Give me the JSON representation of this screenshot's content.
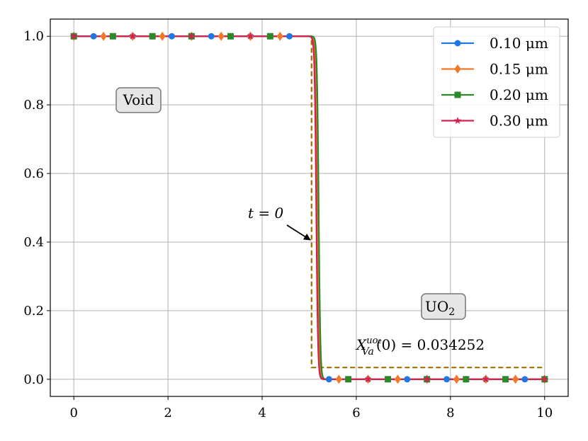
{
  "chart_data": {
    "type": "line",
    "title": "",
    "xlabel": "",
    "ylabel": "",
    "xlim": [
      -0.5,
      10.5
    ],
    "ylim": [
      -0.05,
      1.05
    ],
    "xticks": [
      0,
      2,
      4,
      6,
      8,
      10
    ],
    "yticks": [
      0.0,
      0.2,
      0.4,
      0.6,
      0.8,
      1.0
    ],
    "xtick_labels": [
      "0",
      "2",
      "4",
      "6",
      "8",
      "10"
    ],
    "ytick_labels": [
      "0.0",
      "0.2",
      "0.4",
      "0.6",
      "0.8",
      "1.0"
    ],
    "grid": true,
    "legend_position": "top-right",
    "series": [
      {
        "name": "0.10 μm",
        "color": "#1f77e4",
        "marker": "circle",
        "front_x": 5.17,
        "markers_x": [
          0,
          0.42,
          0.83,
          1.25,
          1.67,
          2.08,
          2.5,
          2.92,
          3.33,
          3.75,
          4.17,
          4.58,
          5.42,
          5.83,
          6.25,
          6.67,
          7.08,
          7.5,
          7.92,
          8.33,
          8.75,
          9.17,
          9.58,
          10
        ]
      },
      {
        "name": "0.15 μm",
        "color": "#f07828",
        "marker": "diamond",
        "front_x": 5.18,
        "markers_x": [
          0,
          0.63,
          1.25,
          1.88,
          2.5,
          3.13,
          3.75,
          4.38,
          5.63,
          6.25,
          6.88,
          7.5,
          8.13,
          8.75,
          9.38,
          10
        ]
      },
      {
        "name": "0.20 μm",
        "color": "#2a8a2a",
        "marker": "square",
        "front_x": 5.2,
        "markers_x": [
          0,
          0.83,
          1.67,
          2.5,
          3.33,
          4.17,
          5.83,
          6.67,
          7.5,
          8.33,
          9.17,
          10
        ]
      },
      {
        "name": "0.30 μm",
        "color": "#d62050",
        "marker": "star",
        "front_x": 5.15,
        "markers_x": [
          0,
          1.25,
          2.5,
          3.75,
          6.25,
          7.5,
          8.75,
          10
        ]
      }
    ],
    "initial_condition": {
      "color": "#a07000",
      "style": "dashed",
      "x": [
        0,
        5.05,
        5.05,
        10
      ],
      "y": [
        1.0,
        1.0,
        0.034252,
        0.034252
      ]
    },
    "annotations": {
      "void_label": "Void",
      "uo2_label": "UO",
      "uo2_subscript": "2",
      "t0_label": "t = 0",
      "xva_main": "X",
      "xva_super": "uo₂",
      "xva_sub": "Va",
      "xva_rest": "(0) = 0.034252"
    }
  }
}
